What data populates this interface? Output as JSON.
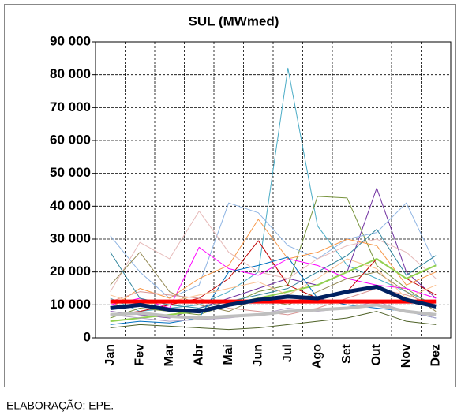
{
  "chart_data": {
    "type": "line",
    "title": "SUL (MWmed)",
    "note": "ELABORAÇÃO: EPE.",
    "categories": [
      "Jan",
      "Fev",
      "Mar",
      "Abr",
      "Mai",
      "Jun",
      "Jul",
      "Ago",
      "Set",
      "Out",
      "Nov",
      "Dez"
    ],
    "ylim": [
      0,
      90000
    ],
    "yticks": [
      0,
      {
        "value": 10000,
        "label": "10 000"
      },
      {
        "value": 20000,
        "label": "20 000"
      },
      {
        "value": 30000,
        "label": "30 000"
      },
      {
        "value": 40000,
        "label": "40 000"
      },
      {
        "value": 50000,
        "label": "50 000"
      },
      {
        "value": 60000,
        "label": "60 000"
      },
      {
        "value": 70000,
        "label": "70 000"
      },
      {
        "value": 80000,
        "label": "80 000"
      },
      {
        "value": 90000,
        "label": "90 000"
      }
    ],
    "grid": true,
    "series": [
      {
        "color": "#4bacc6",
        "width": 1,
        "values": [
          12000,
          8000,
          9000,
          10000,
          14000,
          20000,
          82000,
          34000,
          22000,
          18000,
          14000,
          10000
        ]
      },
      {
        "color": "#7030a0",
        "width": 1,
        "values": [
          8000,
          7000,
          6000,
          9000,
          12000,
          15000,
          18000,
          16000,
          20000,
          45500,
          20000,
          12000
        ]
      },
      {
        "color": "#77933c",
        "width": 1,
        "values": [
          6000,
          9000,
          8000,
          7000,
          10000,
          14000,
          16000,
          43000,
          42500,
          22000,
          15000,
          9000
        ]
      },
      {
        "color": "#8eb4e3",
        "width": 1,
        "values": [
          31000,
          20000,
          12000,
          16000,
          41000,
          38000,
          28000,
          24000,
          30000,
          32000,
          41000,
          22000
        ]
      },
      {
        "color": "#e6b9b8",
        "width": 1,
        "values": [
          14000,
          29000,
          24000,
          38500,
          26000,
          20000,
          18000,
          24000,
          28000,
          30000,
          26000,
          18000
        ]
      },
      {
        "color": "#ff00ff",
        "width": 1,
        "values": [
          10000,
          12000,
          9000,
          27500,
          21000,
          19000,
          24000,
          22000,
          18000,
          16000,
          15000,
          12000
        ]
      },
      {
        "color": "#c00000",
        "width": 1,
        "values": [
          7000,
          8000,
          10000,
          12000,
          18000,
          29500,
          16000,
          12000,
          14000,
          24000,
          18000,
          13000
        ]
      },
      {
        "color": "#948a54",
        "width": 1,
        "values": [
          16000,
          26000,
          14000,
          10000,
          8000,
          12000,
          10000,
          14000,
          18000,
          20000,
          14000,
          8000
        ]
      },
      {
        "color": "#f79646",
        "width": 1,
        "values": [
          9000,
          15000,
          12000,
          18000,
          22000,
          36000,
          24000,
          26000,
          30000,
          28000,
          16000,
          20000
        ]
      },
      {
        "color": "#31859c",
        "width": 1,
        "values": [
          26000,
          12000,
          10000,
          9000,
          11000,
          13000,
          15000,
          20000,
          25000,
          33000,
          19000,
          25000
        ]
      },
      {
        "color": "#92d050",
        "width": 2,
        "values": [
          5000,
          6000,
          7000,
          8000,
          10000,
          12000,
          14000,
          16000,
          20000,
          24000,
          18000,
          22000
        ]
      },
      {
        "color": "#0070c0",
        "width": 1,
        "values": [
          4000,
          5000,
          4500,
          6000,
          20000,
          22000,
          24500,
          12000,
          10000,
          9000,
          8000,
          6000
        ]
      },
      {
        "color": "#d99694",
        "width": 1,
        "values": [
          11000,
          14000,
          13000,
          12000,
          9000,
          8000,
          7000,
          9000,
          12000,
          15000,
          13000,
          10000
        ]
      },
      {
        "color": "#4f6228",
        "width": 1,
        "values": [
          3000,
          4000,
          3500,
          3000,
          2500,
          3000,
          4000,
          5000,
          6000,
          8000,
          5000,
          4000
        ]
      },
      {
        "color": "#b3a2c7",
        "width": 1,
        "values": [
          7000,
          6000,
          5000,
          5500,
          6000,
          7000,
          9000,
          8000,
          9000,
          11000,
          8000,
          6000
        ]
      },
      {
        "color": "#fac090",
        "width": 1,
        "values": [
          13000,
          10000,
          11000,
          13000,
          15000,
          17000,
          13000,
          18000,
          24000,
          21000,
          12000,
          16000
        ]
      },
      {
        "color": "#bfbfbf",
        "width": 4,
        "values": [
          7000,
          7500,
          6500,
          6000,
          6500,
          7000,
          8000,
          8500,
          9000,
          10000,
          8000,
          7000
        ]
      },
      {
        "color": "#ff0000",
        "width": 5,
        "values": [
          11000,
          11000,
          11000,
          11000,
          11000,
          11000,
          11000,
          11000,
          11000,
          11000,
          11000,
          11000
        ]
      },
      {
        "color": "#002060",
        "width": 5,
        "values": [
          9000,
          10000,
          8500,
          8000,
          10000,
          11500,
          12500,
          12000,
          14000,
          15500,
          11500,
          9500
        ]
      }
    ]
  }
}
